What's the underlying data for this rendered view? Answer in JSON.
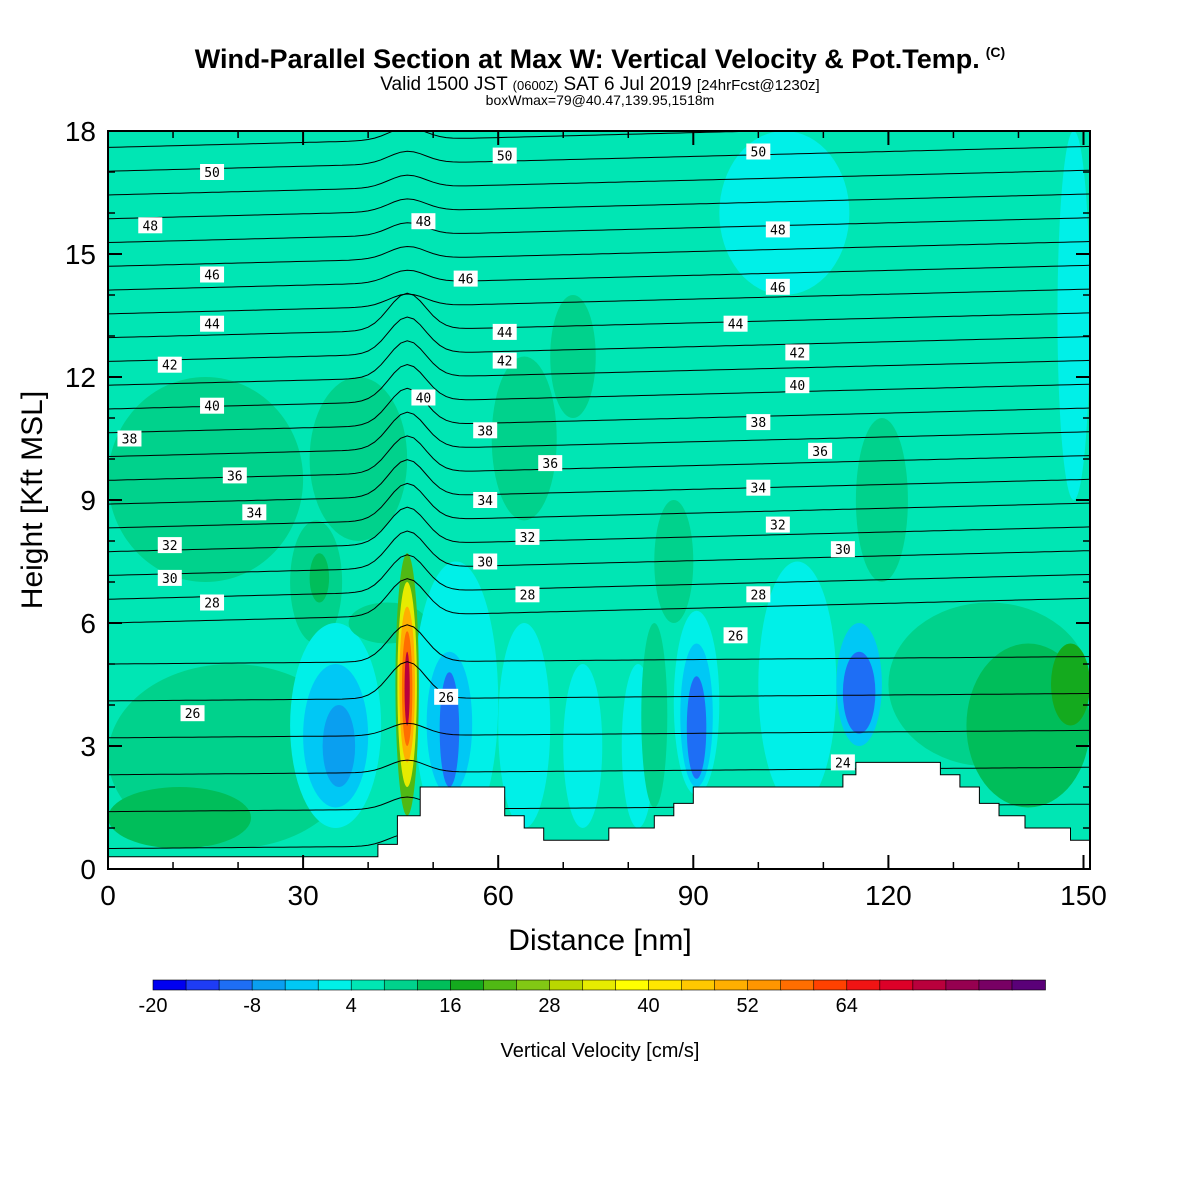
{
  "header": {
    "title": "Wind-Parallel Section at Max W: Vertical Velocity & Pot.Temp.",
    "copyright": "(C)",
    "valid_prefix": "Valid 1500 JST",
    "valid_z": "(0600Z)",
    "valid_date": "SAT 6 Jul 2019",
    "valid_fcst": "[24hrFcst@1230z]",
    "boxinfo": "boxWmax=79@40.47,139.95,1518m"
  },
  "chart_data": {
    "type": "heatmap",
    "title": "Wind-Parallel Section at Max W: Vertical Velocity & Pot.Temp.",
    "xlabel": "Distance [nm]",
    "ylabel": "Height [Kft MSL]",
    "xlim": [
      0,
      151
    ],
    "ylim": [
      0,
      18
    ],
    "xticks": [
      "0",
      "30",
      "60",
      "90",
      "120",
      "150"
    ],
    "yticks": [
      "0",
      "3",
      "6",
      "9",
      "12",
      "15",
      "18"
    ],
    "colorbar": {
      "label": "Vertical Velocity [cm/s]",
      "tick_labels": [
        "-20",
        "-8",
        "4",
        "16",
        "28",
        "40",
        "52",
        "64"
      ],
      "levels_start": -20,
      "level_step": 4,
      "colors": [
        "#0000f0",
        "#1e3cf5",
        "#1e6ef5",
        "#0a9ff0",
        "#00c8f5",
        "#00f0e8",
        "#00e6b4",
        "#00d28c",
        "#00be5a",
        "#14aa1e",
        "#50b914",
        "#82c814",
        "#b9d700",
        "#e6eb00",
        "#ffff00",
        "#ffe600",
        "#ffc800",
        "#ffaf00",
        "#ff9600",
        "#ff6e00",
        "#ff4100",
        "#f01414",
        "#dc0028",
        "#b9003c",
        "#960050",
        "#780064",
        "#5a0078"
      ]
    },
    "cells": [
      {
        "x": 0,
        "y": 7,
        "w": 30,
        "h": 5,
        "value": 4
      },
      {
        "x": 8,
        "y": 8,
        "w": 20,
        "h": 3,
        "value": 4
      },
      {
        "x": 0,
        "y": 0.5,
        "w": 38,
        "h": 4.5,
        "value": 4
      },
      {
        "x": 0,
        "y": 0.5,
        "w": 22,
        "h": 1.5,
        "value": 8
      },
      {
        "x": 28,
        "y": 5.5,
        "w": 8,
        "h": 3,
        "value": 4
      },
      {
        "x": 31,
        "y": 6.5,
        "w": 3,
        "h": 1.2,
        "value": 8
      },
      {
        "x": 28,
        "y": 1,
        "w": 14,
        "h": 5,
        "value": -4
      },
      {
        "x": 30,
        "y": 1.5,
        "w": 10,
        "h": 3.5,
        "value": -8
      },
      {
        "x": 33,
        "y": 2,
        "w": 5,
        "h": 2,
        "value": -12
      },
      {
        "x": 31,
        "y": 8,
        "w": 15,
        "h": 4,
        "value": 4
      },
      {
        "x": 37,
        "y": 5.5,
        "w": 12,
        "h": 1,
        "value": 4
      },
      {
        "x": 47,
        "y": 0.7,
        "w": 13,
        "h": 6.8,
        "value": -4
      },
      {
        "x": 49,
        "y": 1.8,
        "w": 7,
        "h": 3.5,
        "value": -8
      },
      {
        "x": 51,
        "y": 2,
        "w": 3,
        "h": 2.8,
        "value": -16
      },
      {
        "x": 60,
        "y": 1,
        "w": 8,
        "h": 5,
        "value": -4
      },
      {
        "x": 68,
        "y": 11,
        "w": 7,
        "h": 3,
        "value": 4
      },
      {
        "x": 59,
        "y": 8.5,
        "w": 10,
        "h": 4,
        "value": 4
      },
      {
        "x": 70,
        "y": 1,
        "w": 6,
        "h": 4,
        "value": -4
      },
      {
        "x": 79,
        "y": 1,
        "w": 5,
        "h": 4,
        "value": -4
      },
      {
        "x": 82,
        "y": 1.5,
        "w": 4,
        "h": 4.5,
        "value": 4
      },
      {
        "x": 84,
        "y": 6,
        "w": 6,
        "h": 3,
        "value": 4
      },
      {
        "x": 87,
        "y": 1.8,
        "w": 7,
        "h": 4.5,
        "value": -4
      },
      {
        "x": 88,
        "y": 2,
        "w": 5,
        "h": 3.5,
        "value": -8
      },
      {
        "x": 89,
        "y": 2.2,
        "w": 3,
        "h": 2.5,
        "value": -16
      },
      {
        "x": 100,
        "y": 1.5,
        "w": 12,
        "h": 6,
        "value": -4
      },
      {
        "x": 112,
        "y": 3,
        "w": 7,
        "h": 3,
        "value": -8
      },
      {
        "x": 113,
        "y": 3.3,
        "w": 5,
        "h": 2,
        "value": -16
      },
      {
        "x": 115,
        "y": 7,
        "w": 8,
        "h": 4,
        "value": 4
      },
      {
        "x": 120,
        "y": 2.5,
        "w": 31,
        "h": 4,
        "value": 4
      },
      {
        "x": 132,
        "y": 1.5,
        "w": 19,
        "h": 4,
        "value": 8
      },
      {
        "x": 145,
        "y": 3.5,
        "w": 6,
        "h": 2,
        "value": 12
      },
      {
        "x": 94,
        "y": 14,
        "w": 20,
        "h": 4,
        "value": -4
      },
      {
        "x": 146,
        "y": 9,
        "w": 5,
        "h": 9,
        "value": -4
      },
      {
        "x": 44.2,
        "y": 1.3,
        "w": 3.6,
        "h": 6.4,
        "value": 16
      },
      {
        "x": 44.5,
        "y": 2,
        "w": 3,
        "h": 5,
        "value": 28
      },
      {
        "x": 44.8,
        "y": 2.6,
        "w": 2.4,
        "h": 3.8,
        "value": 44
      },
      {
        "x": 45.2,
        "y": 3,
        "w": 1.6,
        "h": 2.8,
        "value": 52
      },
      {
        "x": 45.6,
        "y": 3.5,
        "w": 0.8,
        "h": 1.8,
        "value": 68
      }
    ],
    "terrain": [
      [
        0,
        0.3
      ],
      [
        41.5,
        0.3
      ],
      [
        41.5,
        0.6
      ],
      [
        44.5,
        0.6
      ],
      [
        44.5,
        1.3
      ],
      [
        48,
        1.3
      ],
      [
        48,
        2.0
      ],
      [
        61,
        2.0
      ],
      [
        61,
        1.3
      ],
      [
        64,
        1.3
      ],
      [
        64,
        1.0
      ],
      [
        67,
        1.0
      ],
      [
        67,
        0.7
      ],
      [
        77,
        0.7
      ],
      [
        77,
        1.0
      ],
      [
        84,
        1.0
      ],
      [
        84,
        1.3
      ],
      [
        87,
        1.3
      ],
      [
        87,
        1.6
      ],
      [
        90,
        1.6
      ],
      [
        90,
        2.0
      ],
      [
        104,
        2.0
      ],
      [
        104,
        2.0
      ],
      [
        113,
        2.0
      ],
      [
        113,
        2.3
      ],
      [
        115,
        2.3
      ],
      [
        115,
        2.6
      ],
      [
        128,
        2.6
      ],
      [
        128,
        2.3
      ],
      [
        131,
        2.3
      ],
      [
        131,
        2.0
      ],
      [
        134,
        2.0
      ],
      [
        134,
        1.6
      ],
      [
        137,
        1.6
      ],
      [
        137,
        1.3
      ],
      [
        141,
        1.3
      ],
      [
        141,
        1.0
      ],
      [
        148,
        1.0
      ],
      [
        148,
        0.7
      ],
      [
        151,
        0.7
      ],
      [
        151,
        0
      ],
      [
        0,
        0
      ]
    ],
    "theta_labels": [
      {
        "text": "50",
        "x": 16,
        "y": 17.0
      },
      {
        "text": "50",
        "x": 61,
        "y": 17.4
      },
      {
        "text": "50",
        "x": 100,
        "y": 17.5
      },
      {
        "text": "48",
        "x": 6.5,
        "y": 15.7
      },
      {
        "text": "48",
        "x": 48.5,
        "y": 15.8
      },
      {
        "text": "48",
        "x": 103,
        "y": 15.6
      },
      {
        "text": "46",
        "x": 16,
        "y": 14.5
      },
      {
        "text": "46",
        "x": 55,
        "y": 14.4
      },
      {
        "text": "46",
        "x": 103,
        "y": 14.2
      },
      {
        "text": "44",
        "x": 16,
        "y": 13.3
      },
      {
        "text": "44",
        "x": 61,
        "y": 13.1
      },
      {
        "text": "44",
        "x": 96.5,
        "y": 13.3
      },
      {
        "text": "42",
        "x": 9.5,
        "y": 12.3
      },
      {
        "text": "42",
        "x": 61,
        "y": 12.4
      },
      {
        "text": "42",
        "x": 106,
        "y": 12.6
      },
      {
        "text": "40",
        "x": 16,
        "y": 11.3
      },
      {
        "text": "40",
        "x": 48.5,
        "y": 11.5
      },
      {
        "text": "40",
        "x": 106,
        "y": 11.8
      },
      {
        "text": "38",
        "x": 3.3,
        "y": 10.5
      },
      {
        "text": "38",
        "x": 58,
        "y": 10.7
      },
      {
        "text": "38",
        "x": 100,
        "y": 10.9
      },
      {
        "text": "36",
        "x": 19.5,
        "y": 9.6
      },
      {
        "text": "36",
        "x": 68,
        "y": 9.9
      },
      {
        "text": "36",
        "x": 109.5,
        "y": 10.2
      },
      {
        "text": "34",
        "x": 22.5,
        "y": 8.7
      },
      {
        "text": "34",
        "x": 58,
        "y": 9.0
      },
      {
        "text": "34",
        "x": 100,
        "y": 9.3
      },
      {
        "text": "32",
        "x": 9.5,
        "y": 7.9
      },
      {
        "text": "32",
        "x": 64.5,
        "y": 8.1
      },
      {
        "text": "32",
        "x": 103,
        "y": 8.4
      },
      {
        "text": "30",
        "x": 9.5,
        "y": 7.1
      },
      {
        "text": "30",
        "x": 58,
        "y": 7.5
      },
      {
        "text": "30",
        "x": 113,
        "y": 7.8
      },
      {
        "text": "28",
        "x": 16,
        "y": 6.5
      },
      {
        "text": "28",
        "x": 64.5,
        "y": 6.7
      },
      {
        "text": "28",
        "x": 100,
        "y": 6.7
      },
      {
        "text": "26",
        "x": 13,
        "y": 3.8
      },
      {
        "text": "26",
        "x": 52,
        "y": 4.2
      },
      {
        "text": "26",
        "x": 96.5,
        "y": 5.7
      },
      {
        "text": "24",
        "x": 113,
        "y": 2.6
      }
    ]
  }
}
